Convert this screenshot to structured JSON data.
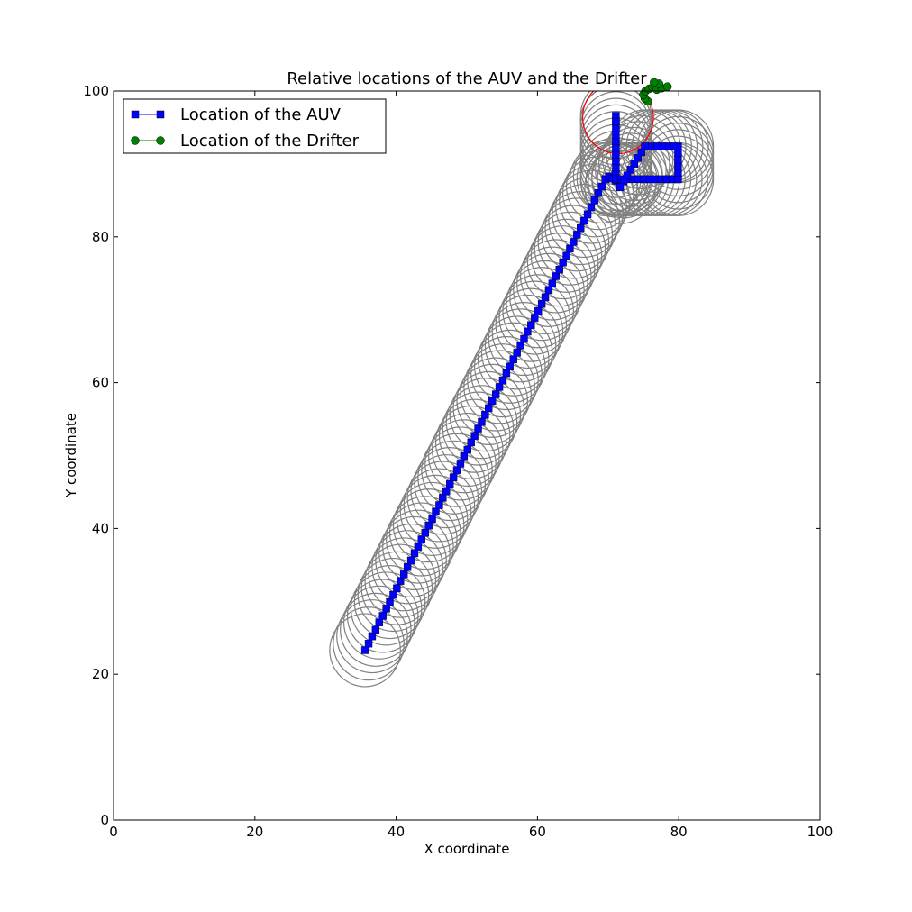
{
  "chart_data": {
    "type": "line",
    "title": "Relative locations of the AUV and the Drifter",
    "xlabel": "X coordinate",
    "ylabel": "Y coordinate",
    "xlim": [
      0,
      100
    ],
    "ylim": [
      0,
      100
    ],
    "xticks": [
      "0",
      "20",
      "40",
      "60",
      "80",
      "100"
    ],
    "yticks": [
      "0",
      "20",
      "40",
      "60",
      "80",
      "100"
    ],
    "grid": false,
    "legend_position": "top-left",
    "colors": {
      "auv": "#0000ff",
      "drifter": "#008000",
      "sensing_circle": "#808080",
      "drifter_circle": "#ff0000"
    },
    "sensing_radius": 5,
    "series": [
      {
        "name": "Location of the AUV",
        "marker": "square",
        "x": [
          35.6,
          36.1,
          36.6,
          37.1,
          37.6,
          38.1,
          38.6,
          39.1,
          39.6,
          40.1,
          40.6,
          41.1,
          41.6,
          42.1,
          42.6,
          43.1,
          43.6,
          44.1,
          44.6,
          45.1,
          45.6,
          46.1,
          46.6,
          47.1,
          47.6,
          48.1,
          48.6,
          49.1,
          49.6,
          50.1,
          50.6,
          51.1,
          51.6,
          52.1,
          52.6,
          53.1,
          53.6,
          54.1,
          54.6,
          55.1,
          55.6,
          56.1,
          56.6,
          57.1,
          57.6,
          58.1,
          58.6,
          59.1,
          59.6,
          60.1,
          60.6,
          61.1,
          61.6,
          62.1,
          62.6,
          63.1,
          63.6,
          64.1,
          64.6,
          65.1,
          65.6,
          66.1,
          66.6,
          67.1,
          67.6,
          68.1,
          68.6,
          69.1,
          69.6,
          70.1,
          70.6,
          71.1,
          71.1,
          71.1,
          71.1,
          71.1,
          71.1,
          71.1,
          71.1,
          71.1,
          71.1,
          71.1,
          71.1,
          71.1,
          71.9,
          72.7,
          73.5,
          74.3,
          75.1,
          75.9,
          76.7,
          77.5,
          78.3,
          79.1,
          79.9,
          79.9,
          79.9,
          79.9,
          79.9,
          79.9,
          79.2,
          78.4,
          77.6,
          76.8,
          76.0,
          75.2,
          74.7,
          74.2,
          73.7,
          73.2,
          72.7,
          72.2,
          71.7
        ],
        "y": [
          23.3,
          24.2,
          25.2,
          26.1,
          27.1,
          28.0,
          29.0,
          29.9,
          30.9,
          31.8,
          32.8,
          33.7,
          34.7,
          35.6,
          36.6,
          37.5,
          38.5,
          39.4,
          40.4,
          41.3,
          42.3,
          43.2,
          44.2,
          45.1,
          46.1,
          47.0,
          48.0,
          48.9,
          49.9,
          50.8,
          51.8,
          52.7,
          53.7,
          54.6,
          55.6,
          56.5,
          57.5,
          58.4,
          59.4,
          60.3,
          61.3,
          62.2,
          63.2,
          64.1,
          65.1,
          66.0,
          67.0,
          67.9,
          68.9,
          69.8,
          70.8,
          71.7,
          72.7,
          73.6,
          74.6,
          75.5,
          76.5,
          77.4,
          78.4,
          79.3,
          80.3,
          81.2,
          82.2,
          83.1,
          84.1,
          85.0,
          86.0,
          86.9,
          87.9,
          88.3,
          88.0,
          87.7,
          88.6,
          89.5,
          90.4,
          91.3,
          92.2,
          93.1,
          94.0,
          94.9,
          95.8,
          96.6,
          95.8,
          87.9,
          87.9,
          87.9,
          87.9,
          87.9,
          87.9,
          87.9,
          87.9,
          87.9,
          87.9,
          87.9,
          87.9,
          88.8,
          89.7,
          90.6,
          91.5,
          92.4,
          92.4,
          92.4,
          92.4,
          92.4,
          92.4,
          92.4,
          91.6,
          90.8,
          90.0,
          89.2,
          88.4,
          87.6,
          86.8
        ]
      },
      {
        "name": "Location of the Drifter",
        "marker": "circle",
        "x": [
          75.6,
          75.2,
          75.0,
          75.3,
          75.8,
          76.3,
          76.9,
          77.6,
          78.4,
          77.2,
          76.5
        ],
        "y": [
          98.6,
          99.0,
          99.5,
          100.0,
          100.3,
          100.5,
          100.2,
          100.4,
          100.6,
          101.0,
          101.2
        ]
      }
    ],
    "drifter_circle_center": [
      71.4,
      96.4
    ]
  }
}
